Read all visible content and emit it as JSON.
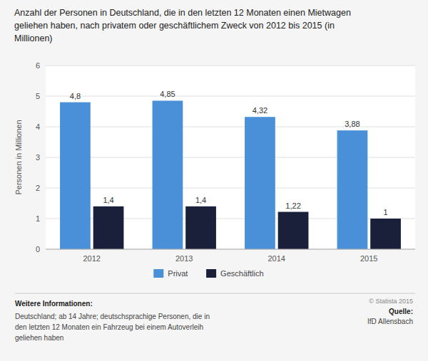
{
  "chart_data": {
    "type": "bar",
    "title": "Anzahl der Personen in Deutschland, die in den letzten 12 Monaten einen Mietwagen\ngeliehen haben, nach privatem oder geschäftlichem Zweck von 2012 bis 2015 (in\nMillionen)",
    "y_label": "Personen in Millionen",
    "categories": [
      "2012",
      "2013",
      "2014",
      "2015"
    ],
    "series": [
      {
        "name": "Privat",
        "color": "#4a90d9",
        "values": [
          4.8,
          4.85,
          4.32,
          3.88
        ],
        "value_labels": [
          "4,8",
          "4,85",
          "4,32",
          "3,88"
        ]
      },
      {
        "name": "Geschäftlich",
        "color": "#1a1f3a",
        "values": [
          1.4,
          1.4,
          1.22,
          1.0
        ],
        "value_labels": [
          "1,4",
          "1,4",
          "1,22",
          "1"
        ]
      }
    ],
    "ylim": [
      0,
      6
    ],
    "yticks": [
      0,
      1,
      2,
      3,
      4,
      5,
      6
    ],
    "grid": true,
    "legend": "bottom",
    "data_labels": true,
    "annotations": [
      "Weitere Informationen:",
      "Deutschland; ab 14 Jahre; deutschsprachige Personen, die in\nden letzten 12 Monaten ein Fahrzeug bei einem Autoverleih\ngeliehen haben",
      "© Statista 2015",
      "Quelle:",
      "IfD Allensbach"
    ]
  }
}
